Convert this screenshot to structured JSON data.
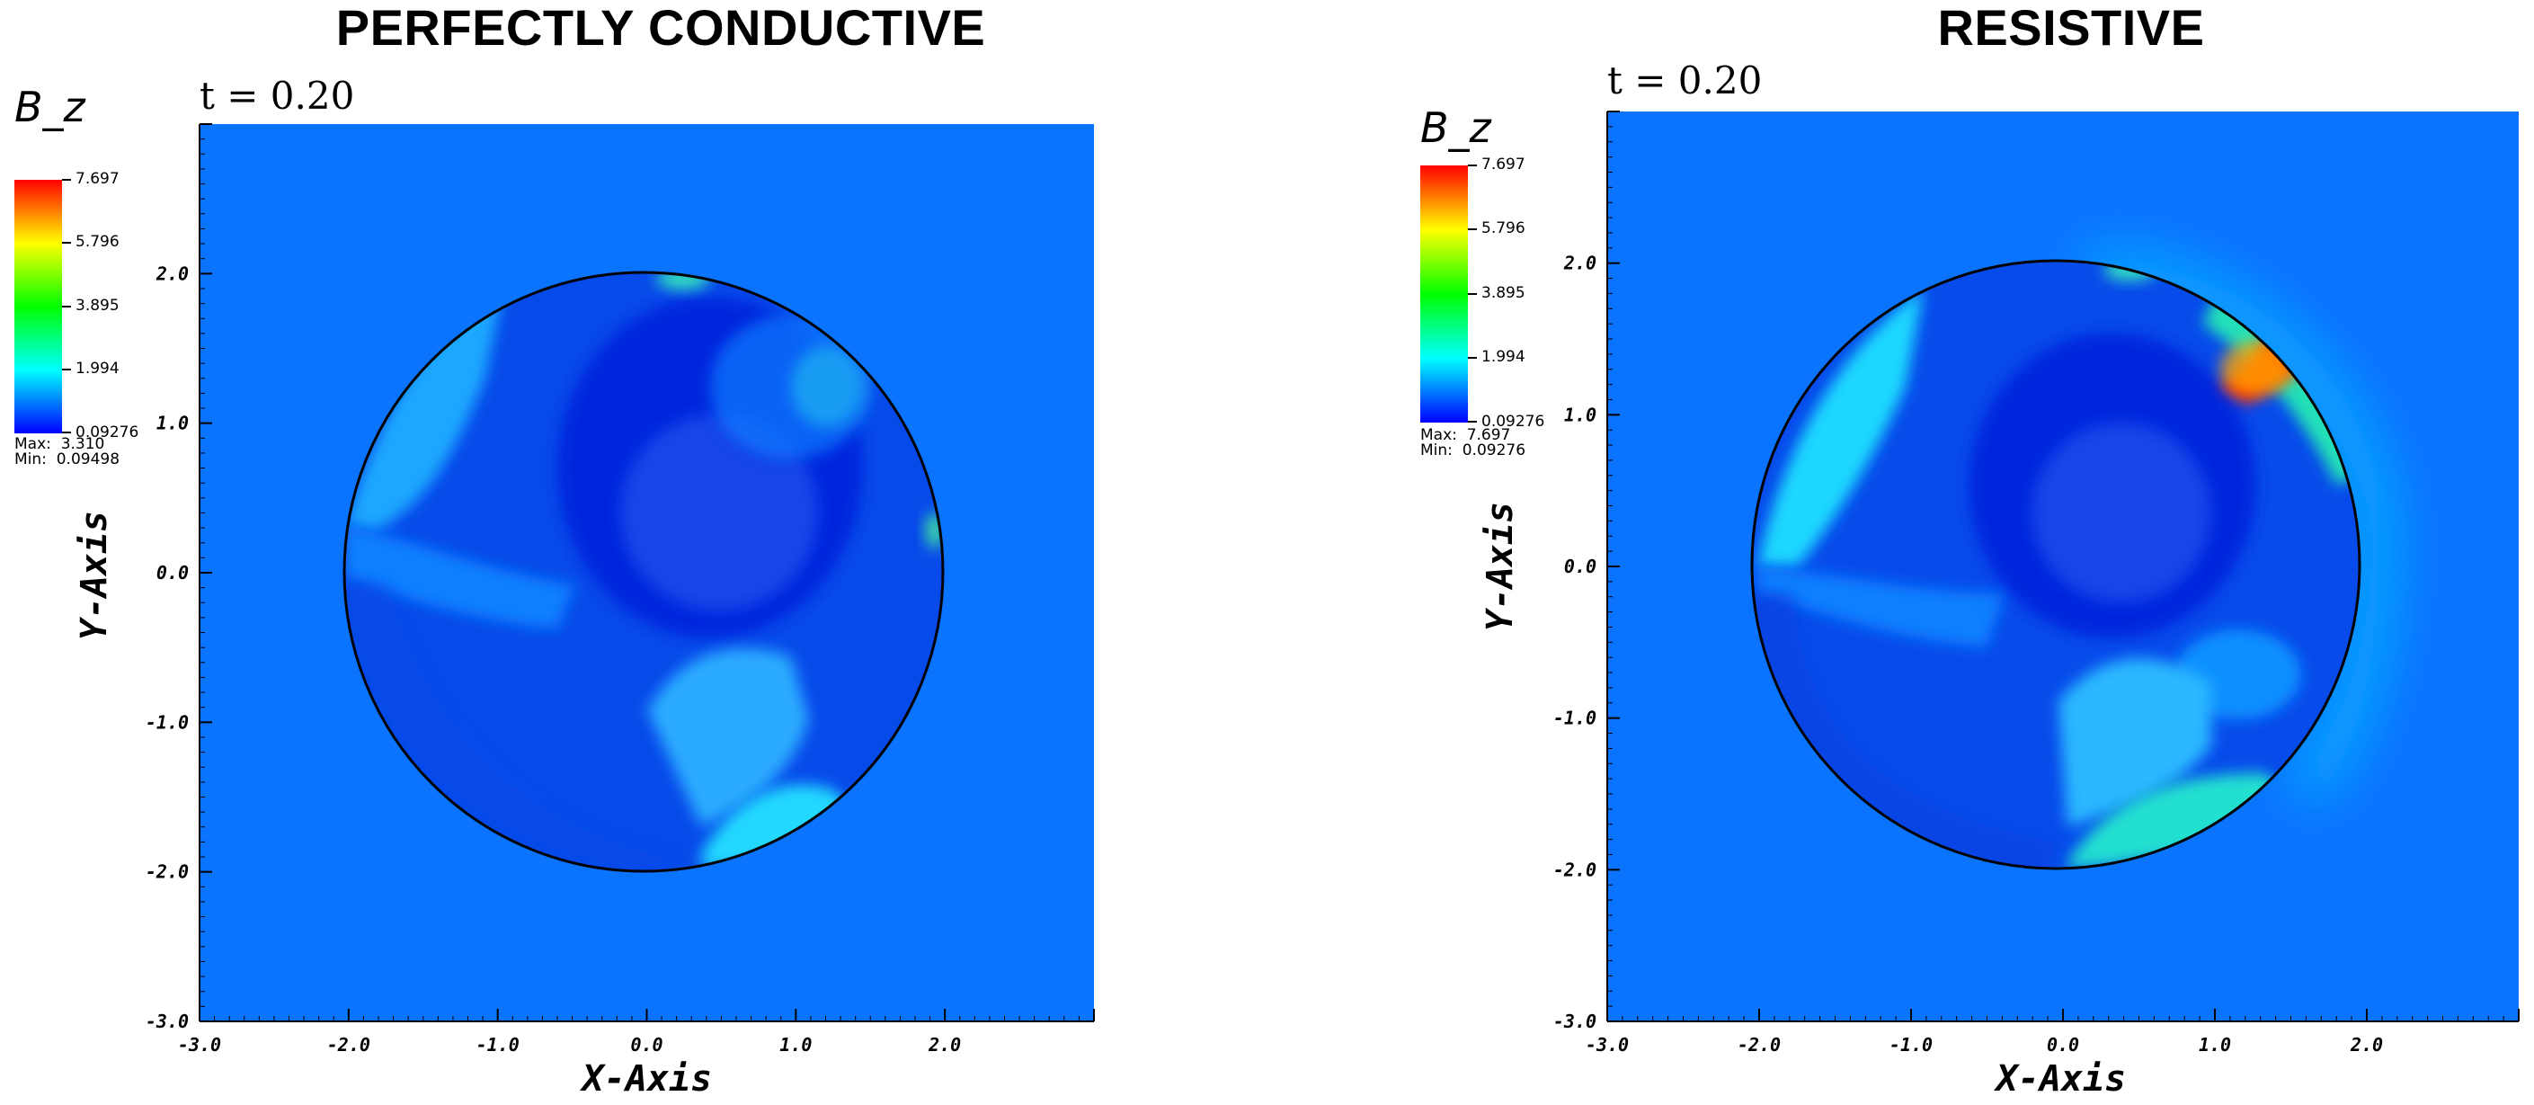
{
  "chart_data": [
    {
      "type": "heatmap",
      "title": "PERFECTLY CONDUCTIVE",
      "variable": "B_z",
      "time_label": "t = 0.20",
      "xlabel": "X-Axis",
      "ylabel": "Y-Axis",
      "xlim": [
        -3.0,
        3.0
      ],
      "ylim": [
        -3.0,
        3.0
      ],
      "x_ticks": [
        "-3.0",
        "-2.0",
        "-1.0",
        "0.0",
        "1.0",
        "2.0"
      ],
      "y_ticks": [
        "-3.0",
        "-2.0",
        "-1.0",
        "0.0",
        "1.0",
        "2.0"
      ],
      "x_tick_values": [
        -3,
        -2,
        -1,
        0,
        1,
        2
      ],
      "y_tick_values": [
        -3,
        -2,
        -1,
        0,
        1,
        2
      ],
      "colorbar": {
        "min": 0.09276,
        "max": 7.697,
        "labels": [
          "7.697",
          "5.796",
          "3.895",
          "1.994",
          "0.09276"
        ],
        "values": [
          7.697,
          5.796,
          3.895,
          1.994,
          0.09276
        ],
        "colors": [
          "#ff0000",
          "#ffff00",
          "#00ff00",
          "#00ffff",
          "#0000ff"
        ]
      },
      "stats": {
        "max_label": "Max:",
        "max": "3.310",
        "min_label": "Min:",
        "min": "0.09498"
      },
      "background_color": "#0a74ff",
      "circle": {
        "center": [
          0,
          0
        ],
        "radius": 2.0
      }
    },
    {
      "type": "heatmap",
      "title": "RESISTIVE",
      "variable": "B_z",
      "time_label": "t = 0.20",
      "xlabel": "X-Axis",
      "ylabel": "Y-Axis",
      "xlim": [
        -3.0,
        3.0
      ],
      "ylim": [
        -3.0,
        3.0
      ],
      "x_ticks": [
        "-3.0",
        "-2.0",
        "-1.0",
        "0.0",
        "1.0",
        "2.0"
      ],
      "y_ticks": [
        "-3.0",
        "-2.0",
        "-1.0",
        "0.0",
        "1.0",
        "2.0"
      ],
      "x_tick_values": [
        -3,
        -2,
        -1,
        0,
        1,
        2
      ],
      "y_tick_values": [
        -3,
        -2,
        -1,
        0,
        1,
        2
      ],
      "colorbar": {
        "min": 0.09276,
        "max": 7.697,
        "labels": [
          "7.697",
          "5.796",
          "3.895",
          "1.994",
          "0.09276"
        ],
        "values": [
          7.697,
          5.796,
          3.895,
          1.994,
          0.09276
        ],
        "colors": [
          "#ff0000",
          "#ffff00",
          "#00ff00",
          "#00ffff",
          "#0000ff"
        ]
      },
      "stats": {
        "max_label": "Max:",
        "max": "7.697",
        "min_label": "Min:",
        "min": "0.09276"
      },
      "background_color": "#0a74ff",
      "circle": {
        "center": [
          0,
          0
        ],
        "radius": 2.0
      }
    }
  ]
}
